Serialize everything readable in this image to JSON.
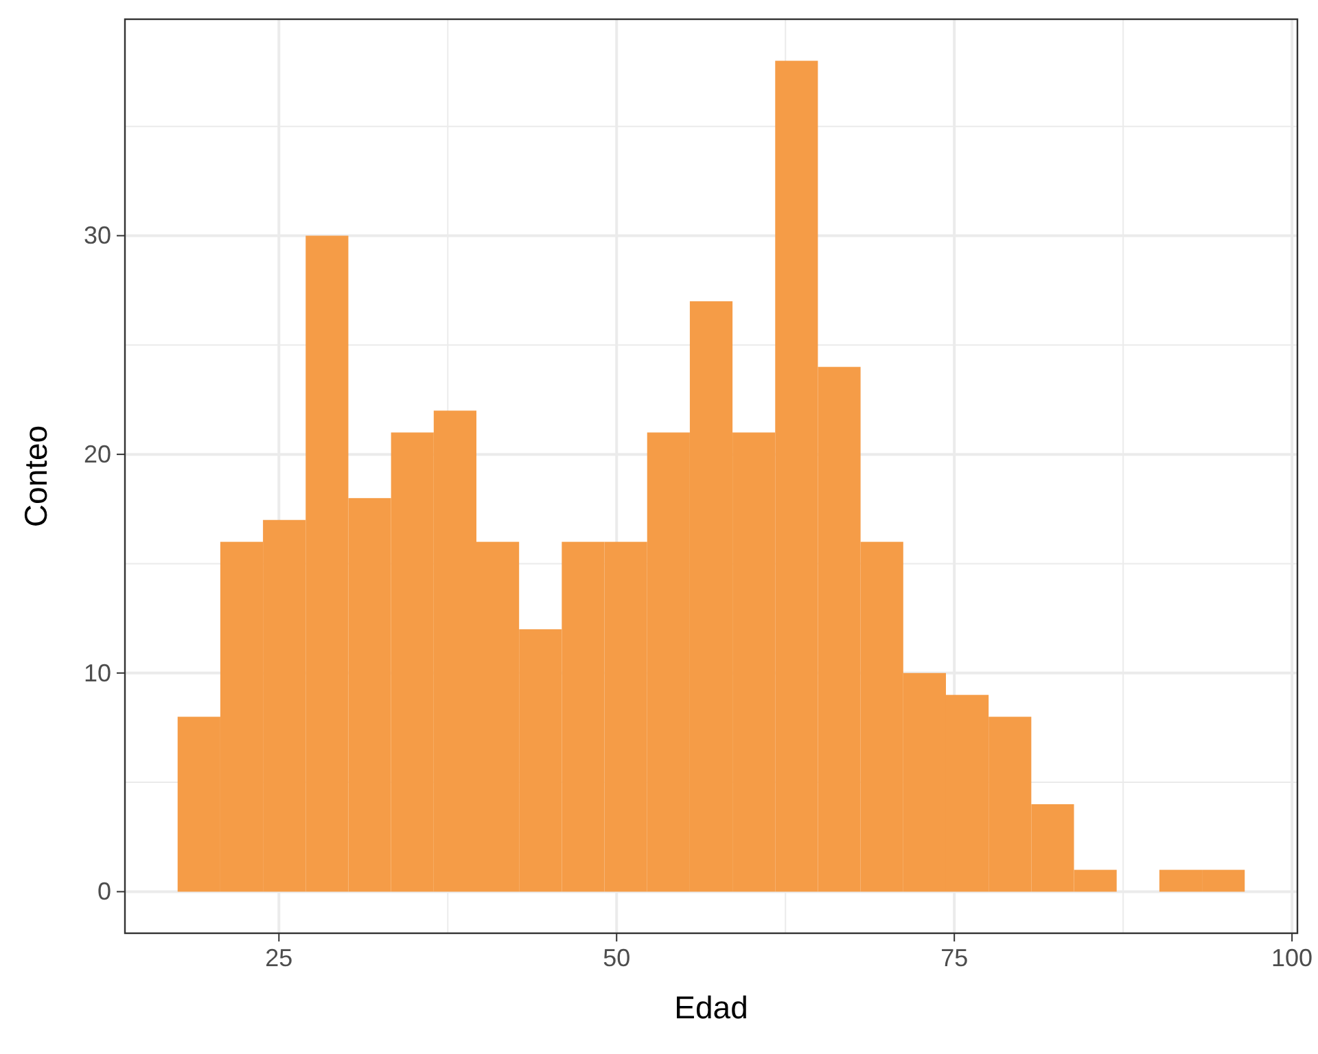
{
  "chart_data": {
    "type": "histogram",
    "xlabel": "Edad",
    "ylabel": "Conteo",
    "color": "#f59c47",
    "bins": [
      17.5,
      20.66,
      23.82,
      26.98,
      30.14,
      33.3,
      36.46,
      39.62,
      42.78,
      45.94,
      49.1,
      52.26,
      55.42,
      58.58,
      61.74,
      64.9,
      68.06,
      71.22,
      74.38,
      77.54,
      80.7,
      83.86,
      87.02,
      90.18,
      93.34,
      96.5
    ],
    "values": [
      8,
      16,
      17,
      30,
      18,
      21,
      22,
      16,
      12,
      16,
      16,
      21,
      27,
      21,
      38,
      24,
      16,
      10,
      9,
      8,
      4,
      1,
      0,
      1,
      1
    ],
    "xlim": [
      13.6,
      100.4
    ],
    "xticks": [
      25,
      {
        "value": 37.5,
        "label": null
      },
      50,
      {
        "value": 62.5,
        "label": null
      },
      75,
      {
        "value": 87.5,
        "label": null
      },
      100
    ],
    "ylim": [
      -1.9,
      39.9
    ],
    "yticks": [
      0,
      {
        "value": 5,
        "label": null
      },
      10,
      {
        "value": 15,
        "label": null
      },
      20,
      {
        "value": 25,
        "label": null
      },
      30,
      {
        "value": 35,
        "label": null
      }
    ],
    "grid": true
  }
}
